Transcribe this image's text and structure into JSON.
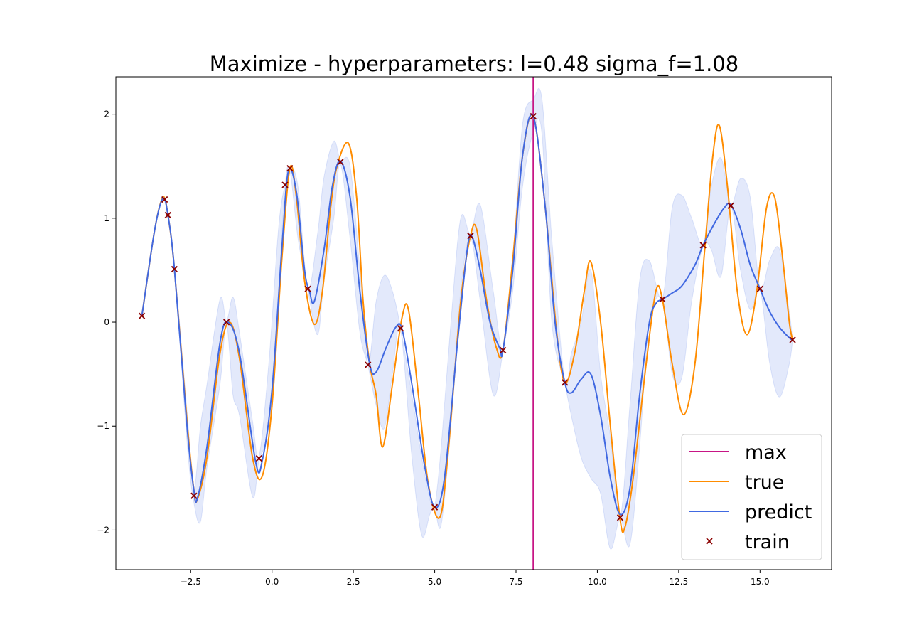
{
  "chart_data": {
    "type": "line",
    "title": "Maximize - hyperparameters: l=0.48 sigma_f=1.08",
    "xlabel": "",
    "ylabel": "",
    "xlim": [
      -4.8,
      17.2
    ],
    "ylim": [
      -2.38,
      2.36
    ],
    "x_ticks": [
      -2.5,
      0.0,
      2.5,
      5.0,
      7.5,
      10.0,
      12.5,
      15.0
    ],
    "x_tick_labels": [
      "−2.5",
      "0.0",
      "2.5",
      "5.0",
      "7.5",
      "10.0",
      "12.5",
      "15.0"
    ],
    "y_ticks": [
      -2,
      -1,
      0,
      1,
      2
    ],
    "y_tick_labels": [
      "−2",
      "−1",
      "0",
      "1",
      "2"
    ],
    "grid": false,
    "legend_position": "lower-right",
    "legend": [
      {
        "label": "max",
        "kind": "line",
        "color": "#c71585"
      },
      {
        "label": "true",
        "kind": "line",
        "color": "#ff8c00"
      },
      {
        "label": "predict",
        "kind": "line",
        "color": "#4169e1"
      },
      {
        "label": "train",
        "kind": "marker",
        "color": "#8b0000"
      }
    ],
    "max_x": 8.03,
    "series": [
      {
        "name": "true",
        "color": "#ff8c00",
        "x": [
          -4.0,
          -3.6,
          -3.35,
          -3.2,
          -3.0,
          -2.6,
          -2.4,
          -2.3,
          -2.0,
          -1.6,
          -1.3,
          -1.0,
          -0.6,
          -0.3,
          0.0,
          0.3,
          0.55,
          0.75,
          1.0,
          1.3,
          1.55,
          1.8,
          2.0,
          2.35,
          2.6,
          2.8,
          3.0,
          3.2,
          3.4,
          3.7,
          4.0,
          4.2,
          4.5,
          4.8,
          5.15,
          5.4,
          5.8,
          6.1,
          6.3,
          6.6,
          6.9,
          7.1,
          7.4,
          7.7,
          8.03,
          8.4,
          8.75,
          9.0,
          9.3,
          9.6,
          9.8,
          10.1,
          10.4,
          10.7,
          10.85,
          11.1,
          11.5,
          11.8,
          12.0,
          12.3,
          12.65,
          13.0,
          13.3,
          13.55,
          13.75,
          14.0,
          14.3,
          14.6,
          14.9,
          15.2,
          15.45,
          15.7,
          15.9,
          16.0
        ],
        "y": [
          0.06,
          0.9,
          1.2,
          1.03,
          0.51,
          -1.0,
          -1.62,
          -1.71,
          -1.3,
          -0.3,
          0.0,
          -0.35,
          -1.3,
          -1.48,
          -0.8,
          0.6,
          1.48,
          1.2,
          0.4,
          -0.02,
          0.3,
          1.1,
          1.5,
          1.72,
          1.2,
          0.2,
          -0.4,
          -0.7,
          -1.2,
          -0.6,
          0.05,
          0.11,
          -0.7,
          -1.55,
          -1.88,
          -1.3,
          0.2,
          0.83,
          0.88,
          0.2,
          -0.25,
          -0.27,
          0.6,
          1.6,
          1.98,
          1.1,
          -0.1,
          -0.58,
          -0.3,
          0.3,
          0.58,
          0.0,
          -1.0,
          -1.9,
          -1.97,
          -1.5,
          -0.4,
          0.3,
          0.22,
          -0.4,
          -0.89,
          -0.4,
          0.7,
          1.6,
          1.89,
          1.3,
          0.3,
          -0.12,
          0.3,
          1.1,
          1.2,
          0.6,
          0.0,
          -0.17
        ]
      },
      {
        "name": "predict",
        "color": "#4169e1",
        "x": [
          -4.0,
          -3.6,
          -3.35,
          -3.2,
          -3.0,
          -2.6,
          -2.4,
          -2.3,
          -2.0,
          -1.6,
          -1.35,
          -1.0,
          -0.5,
          -0.3,
          0.0,
          0.3,
          0.5,
          0.75,
          1.0,
          1.15,
          1.3,
          1.6,
          1.85,
          2.1,
          2.4,
          2.7,
          3.0,
          3.2,
          3.5,
          3.8,
          4.0,
          4.3,
          4.7,
          5.0,
          5.3,
          5.7,
          6.0,
          6.15,
          6.4,
          6.7,
          7.0,
          7.1,
          7.4,
          7.7,
          8.03,
          8.4,
          8.7,
          9.0,
          9.2,
          9.5,
          9.8,
          10.1,
          10.4,
          10.7,
          11.0,
          11.3,
          11.6,
          11.8,
          12.0,
          12.3,
          12.6,
          13.0,
          13.25,
          13.6,
          13.9,
          14.1,
          14.4,
          14.7,
          15.0,
          15.3,
          15.6,
          15.9,
          16.0
        ],
        "y": [
          0.06,
          0.9,
          1.19,
          1.03,
          0.51,
          -1.05,
          -1.62,
          -1.7,
          -1.2,
          -0.2,
          0.0,
          -0.3,
          -1.35,
          -1.33,
          -0.65,
          0.7,
          1.45,
          1.25,
          0.5,
          0.3,
          0.2,
          0.7,
          1.3,
          1.55,
          1.2,
          0.3,
          -0.4,
          -0.48,
          -0.25,
          -0.05,
          -0.07,
          -0.6,
          -1.4,
          -1.78,
          -1.5,
          -0.2,
          0.7,
          0.82,
          0.5,
          0.0,
          -0.25,
          -0.27,
          0.5,
          1.6,
          1.98,
          1.1,
          0.0,
          -0.58,
          -0.68,
          -0.55,
          -0.5,
          -0.9,
          -1.5,
          -1.85,
          -1.6,
          -0.7,
          0.0,
          0.18,
          0.22,
          0.28,
          0.35,
          0.55,
          0.74,
          0.95,
          1.1,
          1.13,
          0.9,
          0.55,
          0.32,
          0.1,
          -0.05,
          -0.15,
          -0.17
        ]
      },
      {
        "name": "train",
        "type": "scatter",
        "color": "#8b0000",
        "x": [
          -4.0,
          -3.3,
          -3.2,
          -3.0,
          -2.4,
          -1.4,
          -0.4,
          0.4,
          0.55,
          1.1,
          2.1,
          2.95,
          3.95,
          5.0,
          6.1,
          7.1,
          8.03,
          9.0,
          10.7,
          12.0,
          13.25,
          14.1,
          15.0,
          16.0
        ],
        "y": [
          0.06,
          1.18,
          1.03,
          0.51,
          -1.67,
          0.0,
          -1.31,
          1.32,
          1.48,
          0.32,
          1.54,
          -0.41,
          -0.06,
          -1.78,
          0.83,
          -0.27,
          1.98,
          -0.58,
          -1.88,
          0.22,
          0.74,
          1.12,
          0.32,
          -0.17
        ]
      }
    ],
    "confidence_band": {
      "color": "#4169e1",
      "x": [
        -4.0,
        -3.6,
        -3.3,
        -3.0,
        -2.6,
        -2.4,
        -2.2,
        -2.0,
        -1.6,
        -1.4,
        -1.2,
        -1.0,
        -0.6,
        -0.4,
        -0.1,
        0.2,
        0.4,
        0.55,
        0.8,
        1.1,
        1.4,
        1.6,
        1.9,
        2.1,
        2.4,
        2.7,
        2.95,
        3.2,
        3.45,
        3.7,
        3.95,
        4.3,
        4.6,
        4.85,
        5.0,
        5.2,
        5.5,
        5.8,
        6.1,
        6.4,
        6.8,
        7.1,
        7.4,
        7.7,
        8.03,
        8.3,
        8.6,
        9.0,
        9.2,
        9.5,
        9.8,
        10.1,
        10.4,
        10.7,
        11.0,
        11.3,
        11.6,
        12.0,
        12.3,
        12.6,
        12.9,
        13.25,
        13.5,
        13.8,
        14.1,
        14.4,
        14.7,
        15.0,
        15.3,
        15.6,
        15.9,
        16.0
      ],
      "upper": [
        0.06,
        0.9,
        1.2,
        0.53,
        -0.9,
        -1.6,
        -1.0,
        -0.6,
        0.22,
        0.01,
        0.24,
        -0.1,
        -0.95,
        -1.29,
        -0.4,
        0.9,
        1.33,
        1.5,
        1.3,
        0.33,
        0.85,
        1.4,
        1.74,
        1.56,
        1.5,
        0.5,
        -0.4,
        0.2,
        0.45,
        0.3,
        -0.05,
        -0.7,
        -1.3,
        -1.7,
        -1.77,
        -1.2,
        0.0,
        1.0,
        0.85,
        1.13,
        0.3,
        -0.26,
        0.6,
        1.9,
        2.14,
        2.14,
        0.8,
        -0.57,
        -0.3,
        0.0,
        0.5,
        -0.5,
        -1.1,
        -1.87,
        -0.8,
        0.4,
        0.59,
        0.23,
        1.1,
        1.22,
        1.0,
        0.75,
        1.3,
        1.58,
        1.13,
        1.38,
        1.2,
        0.33,
        0.6,
        0.7,
        0.1,
        -0.17
      ],
      "lower": [
        0.06,
        0.9,
        1.16,
        0.49,
        -1.2,
        -1.74,
        -1.92,
        -1.4,
        -0.6,
        -0.02,
        -0.7,
        -0.9,
        -1.68,
        -1.33,
        -1.0,
        0.3,
        1.31,
        1.46,
        0.8,
        0.31,
        -0.12,
        0.4,
        1.0,
        1.52,
        0.8,
        -0.1,
        -0.42,
        -0.8,
        -1.02,
        -0.5,
        -0.07,
        -1.3,
        -2.05,
        -1.85,
        -1.79,
        -1.95,
        -1.0,
        0.3,
        0.81,
        0.2,
        -0.7,
        -0.28,
        0.3,
        1.3,
        1.82,
        1.8,
        0.0,
        -0.59,
        -0.9,
        -1.3,
        -1.5,
        -1.65,
        -2.18,
        -1.89,
        -2.14,
        -1.2,
        0.0,
        0.21,
        -0.5,
        -0.53,
        0.2,
        0.73,
        0.7,
        0.44,
        1.11,
        0.5,
        0.12,
        0.31,
        -0.4,
        -0.72,
        -0.4,
        -0.17
      ]
    }
  }
}
